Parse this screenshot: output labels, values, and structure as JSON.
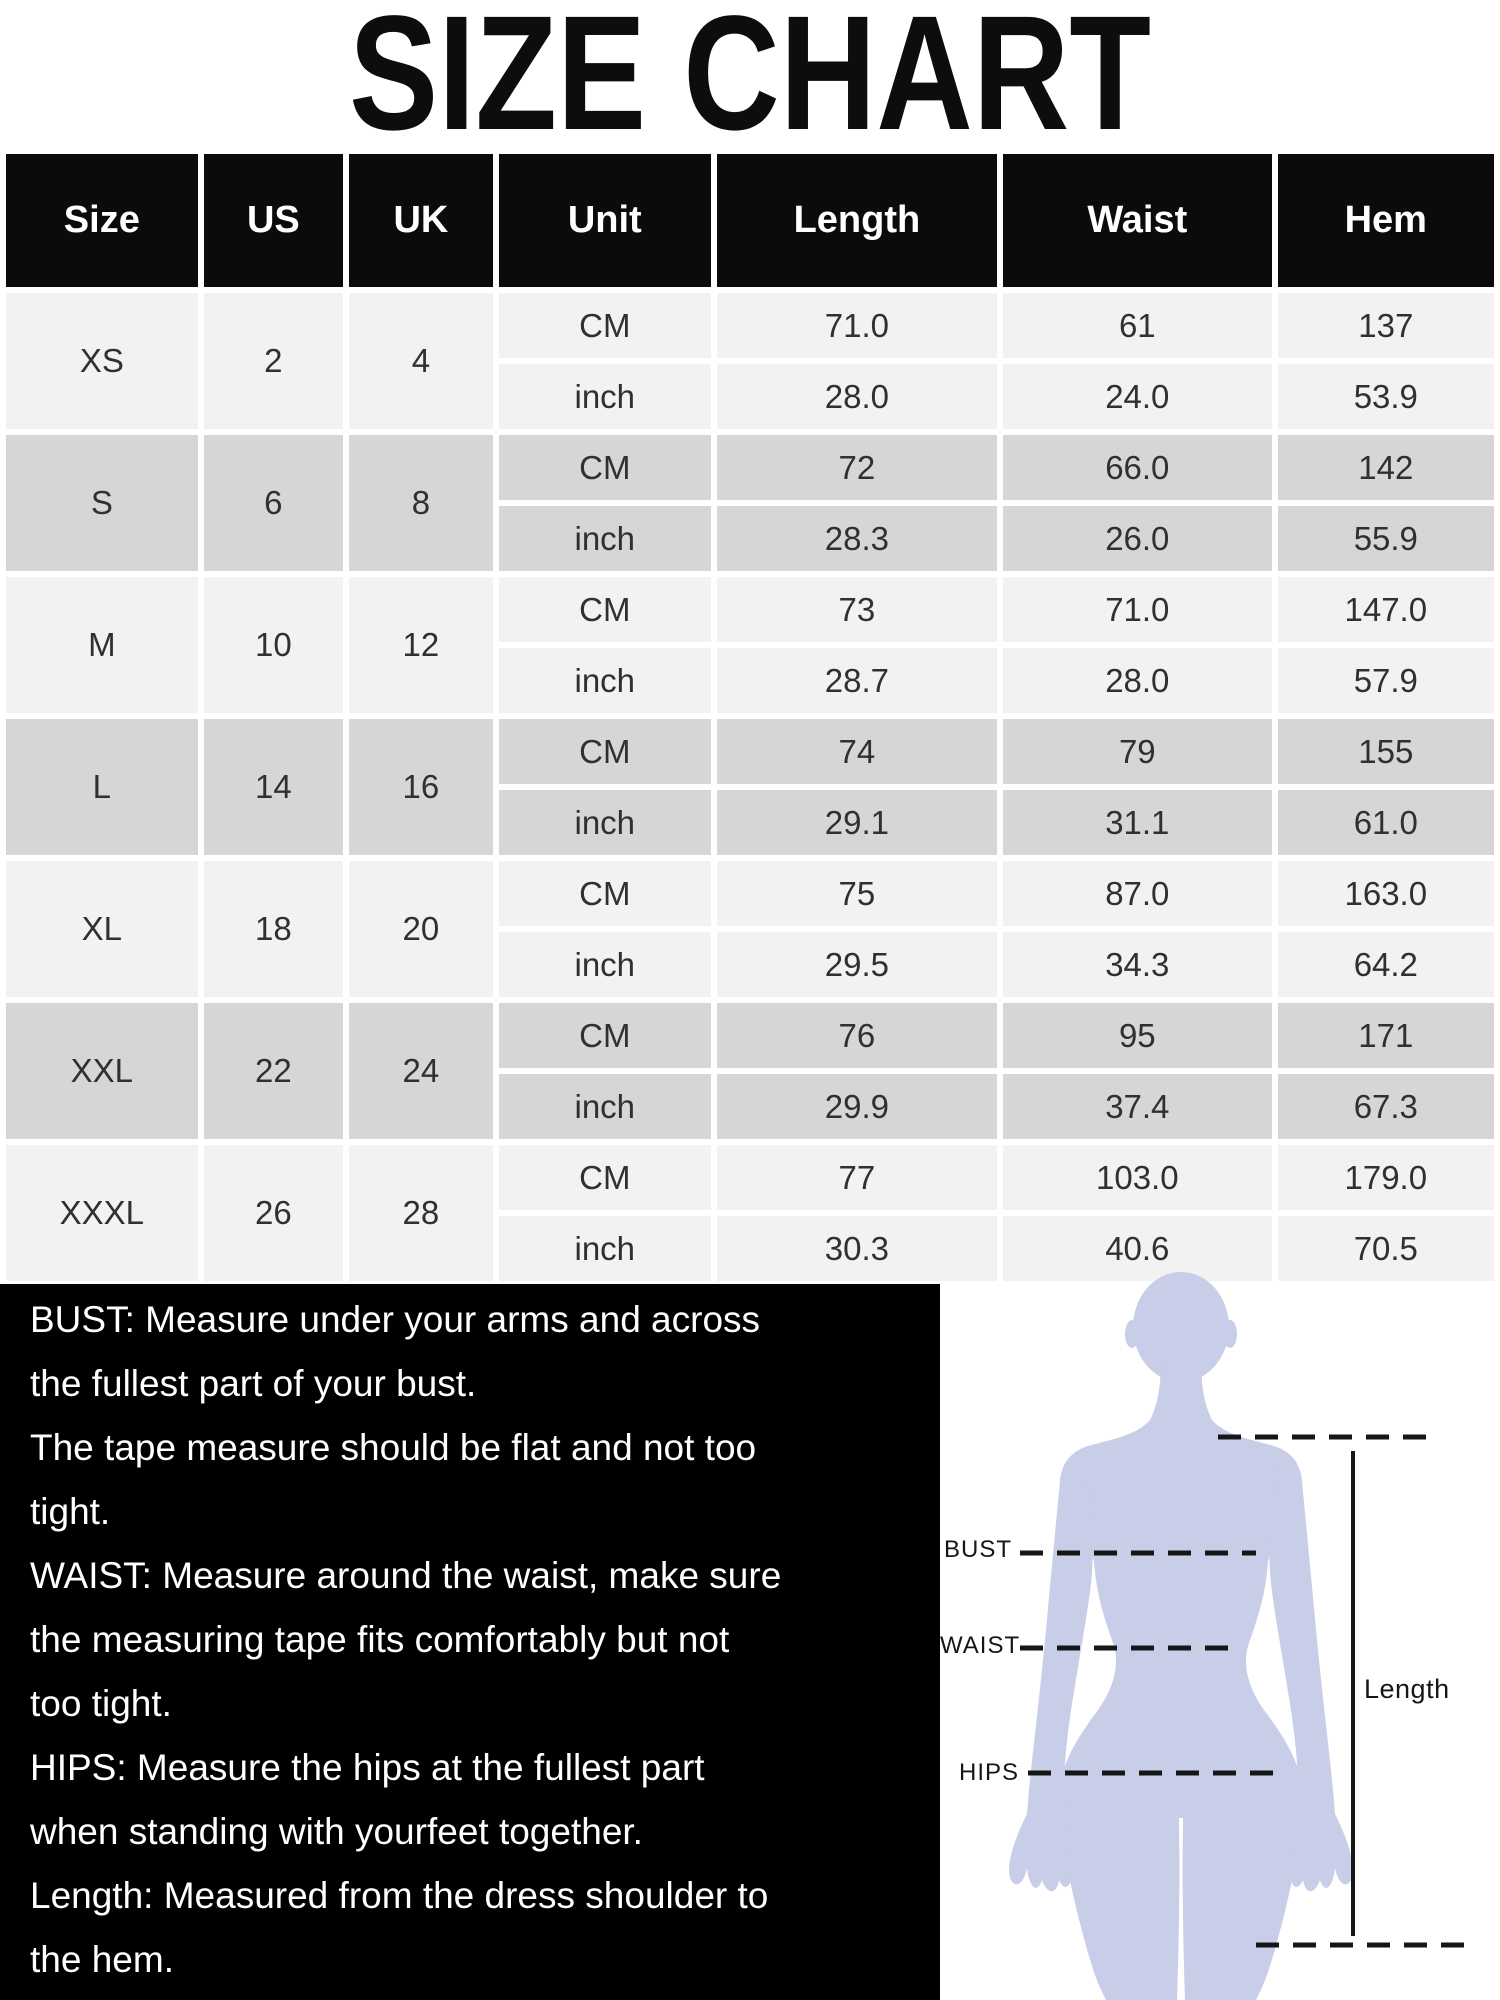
{
  "title": "SIZE CHART",
  "chart_data": {
    "type": "table",
    "title": "SIZE CHART",
    "columns": [
      "Size",
      "US",
      "UK",
      "Unit",
      "Length",
      "Waist",
      "Hem"
    ],
    "rows": [
      [
        "XS",
        "2",
        "4",
        "CM",
        "71.0",
        "61",
        "137"
      ],
      [
        "XS",
        "2",
        "4",
        "inch",
        "28.0",
        "24.0",
        "53.9"
      ],
      [
        "S",
        "6",
        "8",
        "CM",
        "72",
        "66.0",
        "142"
      ],
      [
        "S",
        "6",
        "8",
        "inch",
        "28.3",
        "26.0",
        "55.9"
      ],
      [
        "M",
        "10",
        "12",
        "CM",
        "73",
        "71.0",
        "147.0"
      ],
      [
        "M",
        "10",
        "12",
        "inch",
        "28.7",
        "28.0",
        "57.9"
      ],
      [
        "L",
        "14",
        "16",
        "CM",
        "74",
        "79",
        "155"
      ],
      [
        "L",
        "14",
        "16",
        "inch",
        "29.1",
        "31.1",
        "61.0"
      ],
      [
        "XL",
        "18",
        "20",
        "CM",
        "75",
        "87.0",
        "163.0"
      ],
      [
        "XL",
        "18",
        "20",
        "inch",
        "29.5",
        "34.3",
        "64.2"
      ],
      [
        "XXL",
        "22",
        "24",
        "CM",
        "76",
        "95",
        "171"
      ],
      [
        "XXL",
        "22",
        "24",
        "inch",
        "29.9",
        "37.4",
        "67.3"
      ],
      [
        "XXXL",
        "26",
        "28",
        "CM",
        "77",
        "103.0",
        "179.0"
      ],
      [
        "XXXL",
        "26",
        "28",
        "inch",
        "30.3",
        "40.6",
        "70.5"
      ]
    ]
  },
  "table": {
    "headers": [
      "Size",
      "US",
      "UK",
      "Unit",
      "Length",
      "Waist",
      "Hem"
    ],
    "unit_labels": {
      "cm": "CM",
      "inch": "inch"
    },
    "sizes": [
      {
        "size": "XS",
        "us": "2",
        "uk": "4",
        "cm": [
          "71.0",
          "61",
          "137"
        ],
        "inch": [
          "28.0",
          "24.0",
          "53.9"
        ]
      },
      {
        "size": "S",
        "us": "6",
        "uk": "8",
        "cm": [
          "72",
          "66.0",
          "142"
        ],
        "inch": [
          "28.3",
          "26.0",
          "55.9"
        ]
      },
      {
        "size": "M",
        "us": "10",
        "uk": "12",
        "cm": [
          "73",
          "71.0",
          "147.0"
        ],
        "inch": [
          "28.7",
          "28.0",
          "57.9"
        ]
      },
      {
        "size": "L",
        "us": "14",
        "uk": "16",
        "cm": [
          "74",
          "79",
          "155"
        ],
        "inch": [
          "29.1",
          "31.1",
          "61.0"
        ]
      },
      {
        "size": "XL",
        "us": "18",
        "uk": "20",
        "cm": [
          "75",
          "87.0",
          "163.0"
        ],
        "inch": [
          "29.5",
          "34.3",
          "64.2"
        ]
      },
      {
        "size": "XXL",
        "us": "22",
        "uk": "24",
        "cm": [
          "76",
          "95",
          "171"
        ],
        "inch": [
          "29.9",
          "37.4",
          "67.3"
        ]
      },
      {
        "size": "XXXL",
        "us": "26",
        "uk": "28",
        "cm": [
          "77",
          "103.0",
          "179.0"
        ],
        "inch": [
          "30.3",
          "40.6",
          "70.5"
        ]
      }
    ]
  },
  "notes": {
    "lines": [
      "BUST: Measure under your arms and across",
      "the fullest part of your bust.",
      "The tape measure should be flat and not too",
      "tight.",
      "WAIST: Measure around the waist, make sure",
      "the measuring tape fits comfortably but not",
      "too tight.",
      "HIPS: Measure the hips at the fullest part",
      "when standing with yourfeet together.",
      "Length: Measured from the dress shoulder to",
      "the hem."
    ]
  },
  "figure": {
    "labels": {
      "bust": "BUST",
      "waist": "WAIST",
      "hips": "HIPS",
      "length": "Length"
    }
  },
  "colors": {
    "header_bg": "#0b0b0b",
    "row_light": "#f2f2f2",
    "row_dark": "#d6d6d7",
    "table_text": "#303030",
    "notes_bg": "#000000",
    "notes_text": "#ffffff",
    "silhouette": "#c8cde8",
    "line_color": "#161616"
  }
}
